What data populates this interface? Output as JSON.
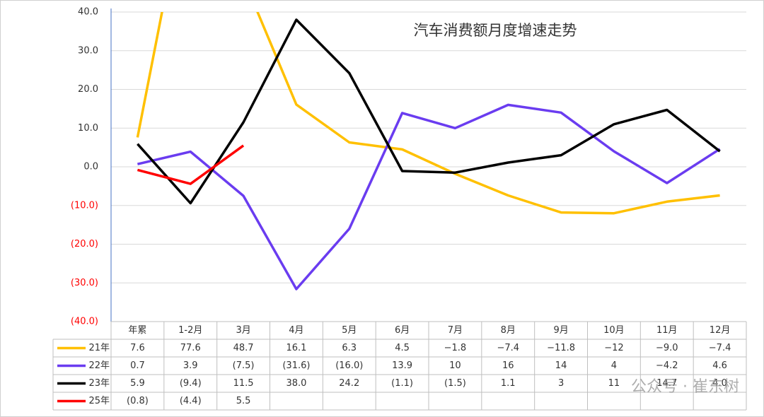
{
  "chart_data": {
    "type": "line",
    "title": "汽车消费额月度增速走势",
    "categories": [
      "年累",
      "1-2月",
      "3月",
      "4月",
      "5月",
      "6月",
      "7月",
      "8月",
      "9月",
      "10月",
      "11月",
      "12月"
    ],
    "series": [
      {
        "name": "21年",
        "color": "#ffc000",
        "values": [
          7.6,
          77.6,
          48.7,
          16.1,
          6.3,
          4.5,
          -1.8,
          -7.4,
          -11.8,
          -12,
          -9.0,
          -7.4
        ],
        "value_labels": [
          "7.6",
          "77.6",
          "48.7",
          "16.1",
          "6.3",
          "4.5",
          "−1.8",
          "−7.4",
          "−11.8",
          "−12",
          "−9.0",
          "−7.4"
        ]
      },
      {
        "name": "22年",
        "color": "#6a3cf0",
        "values": [
          0.7,
          3.9,
          -7.5,
          -31.6,
          -16.0,
          13.9,
          10,
          16,
          14,
          4,
          -4.2,
          4.6
        ],
        "value_labels": [
          "0.7",
          "3.9",
          "(7.5)",
          "(31.6)",
          "(16.0)",
          "13.9",
          "10",
          "16",
          "14",
          "4",
          "−4.2",
          "4.6"
        ]
      },
      {
        "name": "23年",
        "color": "#000000",
        "values": [
          5.9,
          -9.4,
          11.5,
          38.0,
          24.2,
          -1.1,
          -1.5,
          1.1,
          3,
          11,
          14.7,
          4.0
        ],
        "value_labels": [
          "5.9",
          "(9.4)",
          "11.5",
          "38.0",
          "24.2",
          "(1.1)",
          "(1.5)",
          "1.1",
          "3",
          "11",
          "14.7",
          "4.0"
        ]
      },
      {
        "name": "25年",
        "color": "#ff0000",
        "values": [
          -0.8,
          -4.4,
          5.5,
          null,
          null,
          null,
          null,
          null,
          null,
          null,
          null,
          null
        ],
        "value_labels": [
          "(0.8)",
          "(4.4)",
          "5.5",
          null,
          null,
          null,
          null,
          null,
          null,
          null,
          null,
          null
        ]
      }
    ],
    "ylim": [
      -40,
      40
    ],
    "yticks": [
      {
        "value": 40,
        "label": "40.0"
      },
      {
        "value": 30,
        "label": "30.0"
      },
      {
        "value": 20,
        "label": "20.0"
      },
      {
        "value": 10,
        "label": "10.0"
      },
      {
        "value": 0,
        "label": "0.0"
      },
      {
        "value": -10,
        "label": "(10.0)"
      },
      {
        "value": -20,
        "label": "(20.0)"
      },
      {
        "value": -30,
        "label": "(30.0)"
      },
      {
        "value": -40,
        "label": "(40.0)"
      }
    ],
    "negative_tick_color": "#ff0000",
    "grid": true,
    "watermark": "公众号 · 崔东树"
  }
}
